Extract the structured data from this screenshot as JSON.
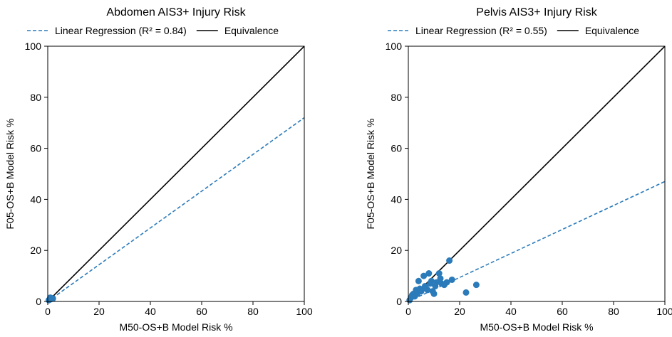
{
  "chart_data": [
    {
      "type": "scatter",
      "title": "Abdomen AIS3+ Injury Risk",
      "xlabel": "M50-OS+B Model Risk %",
      "ylabel": "F05-OS+B Model Risk %",
      "xlim": [
        0,
        100
      ],
      "ylim": [
        0,
        100
      ],
      "xticks": [
        0,
        20,
        40,
        60,
        80,
        100
      ],
      "yticks": [
        0,
        20,
        40,
        60,
        80,
        100
      ],
      "grid": false,
      "legend_position": "top",
      "legend": [
        {
          "label": "Linear Regression (R² = 0.84)",
          "style": "dashed",
          "color": "#2b7bba"
        },
        {
          "label": "Equivalence",
          "style": "solid",
          "color": "#000000"
        }
      ],
      "point_color": "#2b7bba",
      "points": [
        {
          "x": 0.4,
          "y": 0.5
        },
        {
          "x": 0.8,
          "y": 0.7
        },
        {
          "x": 1.2,
          "y": 0.9
        },
        {
          "x": 1.5,
          "y": 1.3
        },
        {
          "x": 2.0,
          "y": 1.1
        },
        {
          "x": 1.0,
          "y": 1.5
        }
      ],
      "regression_line": {
        "x": [
          0,
          100
        ],
        "y": [
          0,
          72
        ]
      },
      "equivalence_line": {
        "x": [
          0,
          100
        ],
        "y": [
          0,
          100
        ]
      }
    },
    {
      "type": "scatter",
      "title": "Pelvis AIS3+ Injury Risk",
      "xlabel": "M50-OS+B Model Risk %",
      "ylabel": "F05-OS+B Model Risk %",
      "xlim": [
        0,
        100
      ],
      "ylim": [
        0,
        100
      ],
      "xticks": [
        0,
        20,
        40,
        60,
        80,
        100
      ],
      "yticks": [
        0,
        20,
        40,
        60,
        80,
        100
      ],
      "grid": false,
      "legend_position": "top",
      "legend": [
        {
          "label": "Linear Regression (R² = 0.55)",
          "style": "dashed",
          "color": "#2b7bba"
        },
        {
          "label": "Equivalence",
          "style": "solid",
          "color": "#000000"
        }
      ],
      "point_color": "#2b7bba",
      "points": [
        {
          "x": 0.5,
          "y": 0.5
        },
        {
          "x": 1.0,
          "y": 1.5
        },
        {
          "x": 1.5,
          "y": 2.5
        },
        {
          "x": 2.0,
          "y": 3.0
        },
        {
          "x": 2.5,
          "y": 2.0
        },
        {
          "x": 3.0,
          "y": 4.5
        },
        {
          "x": 3.5,
          "y": 3.0
        },
        {
          "x": 4.0,
          "y": 8.0
        },
        {
          "x": 4.5,
          "y": 5.0
        },
        {
          "x": 5.0,
          "y": 4.0
        },
        {
          "x": 6.0,
          "y": 10.0
        },
        {
          "x": 6.5,
          "y": 6.0
        },
        {
          "x": 7.0,
          "y": 5.0
        },
        {
          "x": 7.5,
          "y": 4.5
        },
        {
          "x": 8.0,
          "y": 11.0
        },
        {
          "x": 8.5,
          "y": 7.0
        },
        {
          "x": 9.0,
          "y": 8.0
        },
        {
          "x": 9.5,
          "y": 4.0
        },
        {
          "x": 10.0,
          "y": 3.0
        },
        {
          "x": 10.5,
          "y": 6.0
        },
        {
          "x": 11.0,
          "y": 7.5
        },
        {
          "x": 12.0,
          "y": 11.0
        },
        {
          "x": 12.5,
          "y": 9.0
        },
        {
          "x": 13.0,
          "y": 7.0
        },
        {
          "x": 14.0,
          "y": 6.5
        },
        {
          "x": 15.0,
          "y": 7.5
        },
        {
          "x": 16.0,
          "y": 16.0
        },
        {
          "x": 17.0,
          "y": 8.5
        },
        {
          "x": 22.5,
          "y": 3.5
        },
        {
          "x": 26.5,
          "y": 6.5
        }
      ],
      "regression_line": {
        "x": [
          0,
          100
        ],
        "y": [
          0,
          47
        ]
      },
      "equivalence_line": {
        "x": [
          0,
          100
        ],
        "y": [
          0,
          100
        ]
      }
    }
  ]
}
